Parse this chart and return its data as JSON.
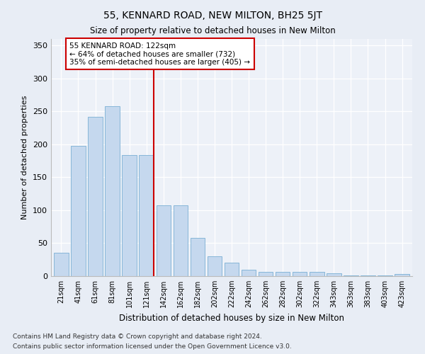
{
  "title": "55, KENNARD ROAD, NEW MILTON, BH25 5JT",
  "subtitle": "Size of property relative to detached houses in New Milton",
  "xlabel": "Distribution of detached houses by size in New Milton",
  "ylabel": "Number of detached properties",
  "categories": [
    "21sqm",
    "41sqm",
    "61sqm",
    "81sqm",
    "101sqm",
    "121sqm",
    "142sqm",
    "162sqm",
    "182sqm",
    "202sqm",
    "222sqm",
    "242sqm",
    "262sqm",
    "282sqm",
    "302sqm",
    "322sqm",
    "343sqm",
    "363sqm",
    "383sqm",
    "403sqm",
    "423sqm"
  ],
  "values": [
    35,
    198,
    242,
    258,
    184,
    184,
    108,
    108,
    58,
    30,
    20,
    10,
    6,
    6,
    6,
    6,
    4,
    1,
    1,
    1,
    3
  ],
  "bar_color": "#c5d8ee",
  "bar_edge_color": "#7aafd4",
  "marker_bar_index": 5,
  "marker_label": "55 KENNARD ROAD: 122sqm",
  "annotation_line1": "← 64% of detached houses are smaller (732)",
  "annotation_line2": "35% of semi-detached houses are larger (405) →",
  "marker_color": "#cc0000",
  "ylim": [
    0,
    360
  ],
  "yticks": [
    0,
    50,
    100,
    150,
    200,
    250,
    300,
    350
  ],
  "bg_color": "#e8edf5",
  "plot_bg_color": "#edf1f8",
  "footer1": "Contains HM Land Registry data © Crown copyright and database right 2024.",
  "footer2": "Contains public sector information licensed under the Open Government Licence v3.0."
}
